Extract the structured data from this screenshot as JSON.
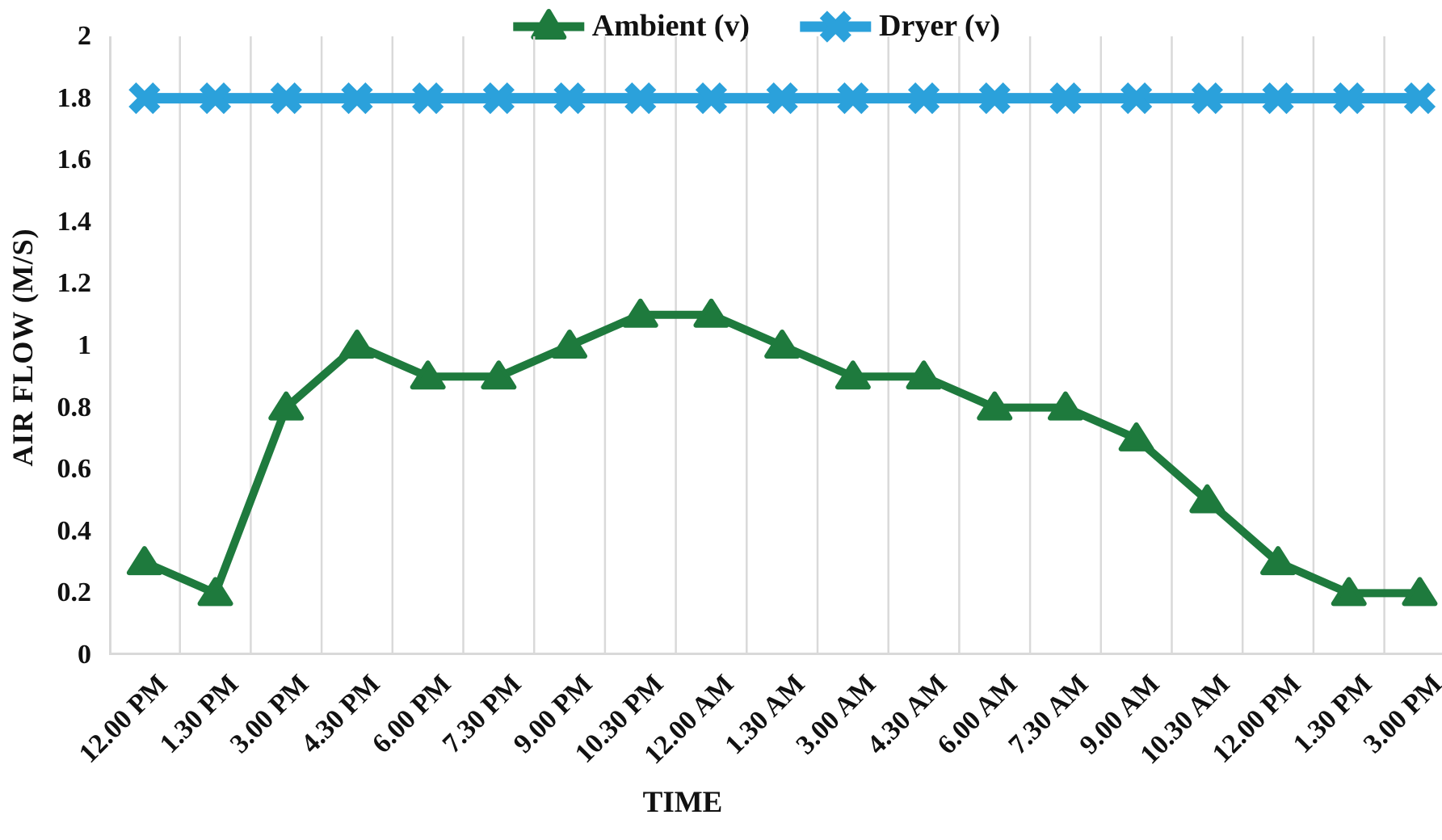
{
  "chart_data": {
    "type": "line",
    "title": "",
    "xlabel": "TIME",
    "ylabel": "AIR FLOW (M/S)",
    "ylim": [
      0,
      2
    ],
    "ytick_step": 0.2,
    "ytick_labels": [
      "2",
      "1.8",
      "1.6",
      "1.4",
      "1.2",
      "1",
      "0.8",
      "0.6",
      "0.4",
      "0.2",
      "0"
    ],
    "categories": [
      "12.00 PM",
      "1.30 PM",
      "3.00 PM",
      "4.30 PM",
      "6.00 PM",
      "7.30 PM",
      "9.00 PM",
      "10.30 PM",
      "12.00 AM",
      "1.30 AM",
      "3.00 AM",
      "4.30 AM",
      "6.00 AM",
      "7.30 AM",
      "9.00 AM",
      "10.30 AM",
      "12.00 PM",
      "1.30 PM",
      "3.00 PM"
    ],
    "series": [
      {
        "name": "Ambient (v)",
        "color": "#1E7A3D",
        "marker": "triangle",
        "values": [
          0.3,
          0.2,
          0.8,
          1.0,
          0.9,
          0.9,
          1.0,
          1.1,
          1.1,
          1.0,
          0.9,
          0.9,
          0.8,
          0.8,
          0.7,
          0.5,
          0.3,
          0.2,
          0.2
        ]
      },
      {
        "name": "Dryer (v)",
        "color": "#2BA1DB",
        "marker": "x",
        "values": [
          1.8,
          1.8,
          1.8,
          1.8,
          1.8,
          1.8,
          1.8,
          1.8,
          1.8,
          1.8,
          1.8,
          1.8,
          1.8,
          1.8,
          1.8,
          1.8,
          1.8,
          1.8,
          1.8
        ]
      }
    ],
    "legend_position": "top-center",
    "grid": "vertical-only",
    "gridline_color": "#D9D9D9",
    "axis_line_color": "#D9D9D9",
    "text_color": "#111111"
  }
}
